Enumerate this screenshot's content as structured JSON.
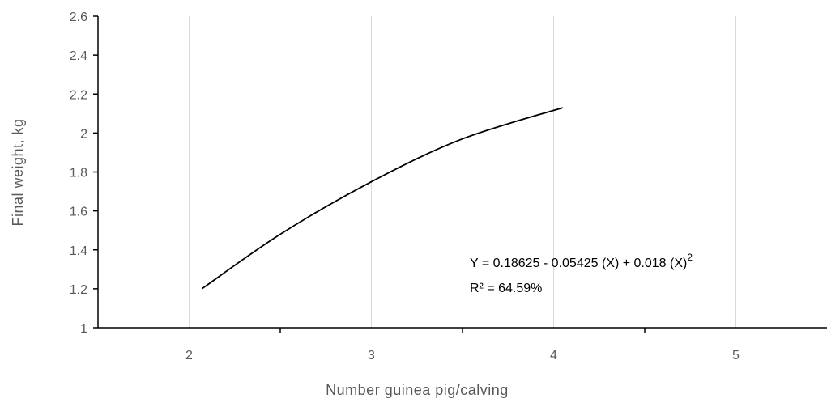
{
  "chart_data": {
    "type": "line",
    "xlabel": "Number  guinea pig/calving",
    "ylabel": "Final weight, kg",
    "xlim": [
      1.5,
      5.5
    ],
    "ylim": [
      1,
      2.6
    ],
    "x_ticks": [
      "2",
      "3",
      "4",
      "5"
    ],
    "y_ticks": [
      "1",
      "1.2",
      "1.4",
      "1.6",
      "1.8",
      "2",
      "2.2",
      "2.4",
      "2.6"
    ],
    "grid": "vertical",
    "series": [
      {
        "x": [
          2.07,
          2.5,
          3.0,
          3.5,
          4.05
        ],
        "y": [
          1.2,
          1.48,
          1.75,
          1.97,
          2.13
        ]
      }
    ],
    "annotations": {
      "equation": "Y = 0.18625 -  0.05425 (X) + 0.018 (X)",
      "equation_sup": "2",
      "r2": "R²  = 64.59%"
    },
    "colors": {
      "line": "#000000",
      "axis": "#000000",
      "grid": "#d9d9d9",
      "text": "#595959"
    }
  }
}
